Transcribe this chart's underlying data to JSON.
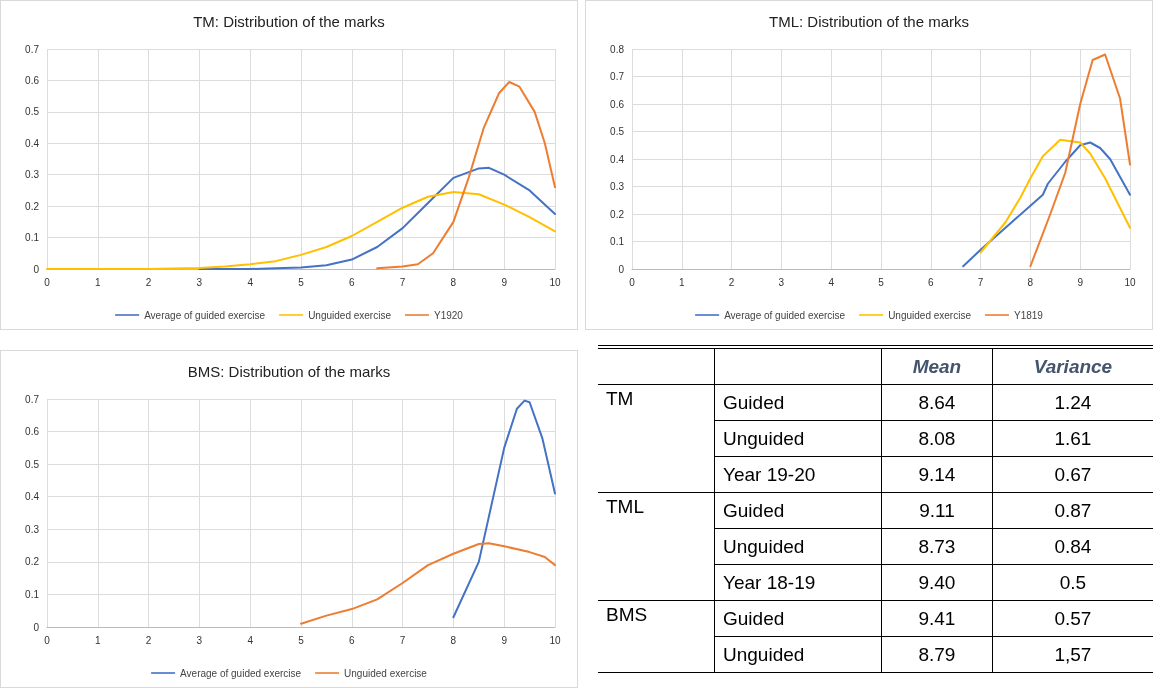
{
  "chart_data": [
    {
      "type": "line",
      "title": "TM: Distribution of the marks",
      "xlim": [
        0,
        10
      ],
      "xticks": [
        0,
        1,
        2,
        3,
        4,
        5,
        6,
        7,
        8,
        9,
        10
      ],
      "ylim": [
        0,
        0.7
      ],
      "yticks": [
        0,
        0.1,
        0.2,
        0.3,
        0.4,
        0.5,
        0.6,
        0.7
      ],
      "grid": true,
      "legend": "bottom",
      "marker": "none",
      "series": [
        {
          "name": "Average of guided exercise",
          "color": "#4472c4",
          "x": [
            3,
            3.5,
            4,
            4.5,
            5,
            5.5,
            6,
            6.5,
            7,
            7.5,
            8,
            8.5,
            8.7,
            9,
            9.5,
            10
          ],
          "values": [
            0,
            0,
            0,
            0.002,
            0.005,
            0.012,
            0.03,
            0.07,
            0.13,
            0.21,
            0.29,
            0.32,
            0.322,
            0.3,
            0.25,
            0.175
          ]
        },
        {
          "name": "Unguided exercise",
          "color": "#ffc000",
          "x": [
            0,
            1,
            2,
            3,
            3.5,
            4,
            4.5,
            5,
            5.5,
            6,
            6.5,
            7,
            7.5,
            8,
            8.5,
            9,
            9.5,
            10
          ],
          "values": [
            0,
            0,
            0,
            0.003,
            0.008,
            0.015,
            0.025,
            0.045,
            0.07,
            0.105,
            0.15,
            0.195,
            0.23,
            0.245,
            0.238,
            0.205,
            0.165,
            0.12
          ]
        },
        {
          "name": "Y1920",
          "color": "#ed7d31",
          "x": [
            6.5,
            7,
            7.3,
            7.6,
            8,
            8.3,
            8.6,
            8.9,
            9.1,
            9.3,
            9.6,
            9.8,
            10
          ],
          "values": [
            0.002,
            0.008,
            0.015,
            0.05,
            0.15,
            0.29,
            0.45,
            0.56,
            0.595,
            0.58,
            0.5,
            0.4,
            0.26
          ]
        }
      ]
    },
    {
      "type": "line",
      "title": "TML: Distribution of the marks",
      "xlim": [
        0,
        10
      ],
      "xticks": [
        0,
        1,
        2,
        3,
        4,
        5,
        6,
        7,
        8,
        9,
        10
      ],
      "ylim": [
        0,
        0.8
      ],
      "yticks": [
        0,
        0.1,
        0.2,
        0.3,
        0.4,
        0.5,
        0.6,
        0.7,
        0.8
      ],
      "grid": true,
      "legend": "bottom",
      "marker": "none",
      "series": [
        {
          "name": "Average of guided exercise",
          "color": "#4472c4",
          "x": [
            6.65,
            7,
            7.5,
            8,
            8.25,
            8.35,
            8.7,
            9,
            9.2,
            9.4,
            9.6,
            10
          ],
          "values": [
            0.01,
            0.07,
            0.15,
            0.23,
            0.27,
            0.31,
            0.39,
            0.45,
            0.46,
            0.44,
            0.4,
            0.27
          ]
        },
        {
          "name": "Unguided exercise",
          "color": "#ffc000",
          "x": [
            7,
            7.5,
            7.8,
            8,
            8.25,
            8.6,
            9,
            9.2,
            9.5,
            10
          ],
          "values": [
            0.06,
            0.17,
            0.26,
            0.33,
            0.41,
            0.47,
            0.46,
            0.42,
            0.33,
            0.15
          ]
        },
        {
          "name": "Y1819",
          "color": "#ed7d31",
          "x": [
            8,
            8.4,
            8.7,
            9,
            9.25,
            9.5,
            9.8,
            10
          ],
          "values": [
            0.01,
            0.2,
            0.35,
            0.6,
            0.76,
            0.78,
            0.62,
            0.38
          ]
        }
      ]
    },
    {
      "type": "line",
      "title": "BMS: Distribution of the marks",
      "xlim": [
        0,
        10
      ],
      "xticks": [
        0,
        1,
        2,
        3,
        4,
        5,
        6,
        7,
        8,
        9,
        10
      ],
      "ylim": [
        0,
        0.7
      ],
      "yticks": [
        0,
        0.1,
        0.2,
        0.3,
        0.4,
        0.5,
        0.6,
        0.7
      ],
      "grid": true,
      "legend": "bottom",
      "marker": "none",
      "series": [
        {
          "name": "Average of guided exercise",
          "color": "#4472c4",
          "x": [
            8,
            8.5,
            9,
            9.25,
            9.4,
            9.5,
            9.75,
            10
          ],
          "values": [
            0.03,
            0.2,
            0.55,
            0.67,
            0.695,
            0.69,
            0.58,
            0.41
          ]
        },
        {
          "name": "Unguided exercise",
          "color": "#ed7d31",
          "x": [
            5,
            5.5,
            6,
            6.5,
            7,
            7.5,
            8,
            8.5,
            8.7,
            9,
            9.5,
            9.8,
            10
          ],
          "values": [
            0.01,
            0.035,
            0.055,
            0.085,
            0.135,
            0.19,
            0.225,
            0.255,
            0.257,
            0.248,
            0.23,
            0.215,
            0.19
          ]
        }
      ]
    },
    {
      "type": "other",
      "categories": [
        "Mean",
        "Variance"
      ],
      "y_categories": [
        "TM",
        null,
        null,
        "TML",
        null,
        null,
        "BMS",
        null
      ],
      "y2_categories": [
        "Guided",
        "Unguided",
        "Year 19-20",
        "Guided",
        "Unguided",
        "Year 18-19",
        "Guided",
        "Unguided"
      ],
      "cell_labels": [
        [
          "8.64",
          "1.24"
        ],
        [
          "8.08",
          "1.61"
        ],
        [
          "9.14",
          "0.67"
        ],
        [
          "9.11",
          "0.87"
        ],
        [
          "8.73",
          "0.84"
        ],
        [
          "9.40",
          "0.5"
        ],
        [
          "9.41",
          "0.57"
        ],
        [
          "8.79",
          "1,57"
        ]
      ]
    }
  ]
}
